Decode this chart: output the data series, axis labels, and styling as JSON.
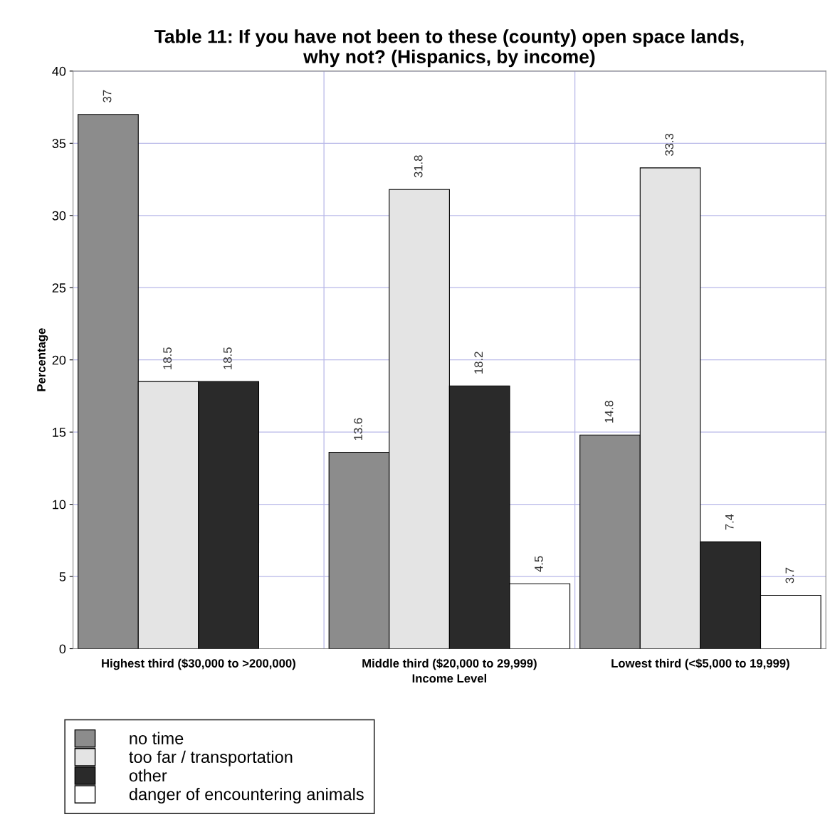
{
  "chart_data": {
    "type": "bar",
    "title": "Table 11: If you have not been to these (county) open space lands,\nwhy not? (Hispanics, by income)",
    "xlabel": "Income Level",
    "ylabel": "Percentage",
    "categories": [
      "Highest third ($30,000 to >200,000)",
      "Middle third ($20,000 to 29,999)",
      "Lowest third (<$5,000 to 19,999)"
    ],
    "series": [
      {
        "name": "no time",
        "color": "#8c8c8c",
        "values": [
          37,
          13.6,
          14.8
        ]
      },
      {
        "name": "too far / transportation",
        "color": "#e4e4e4",
        "values": [
          18.5,
          31.8,
          33.3
        ]
      },
      {
        "name": "other",
        "color": "#2a2a2a",
        "values": [
          18.5,
          18.2,
          7.4
        ]
      },
      {
        "name": "danger of encountering animals",
        "color": "#ffffff",
        "values": [
          null,
          4.5,
          3.7
        ]
      }
    ],
    "ylim": [
      0,
      40
    ],
    "yticks": [
      0,
      5,
      10,
      15,
      20,
      25,
      30,
      35,
      40
    ],
    "grid": true,
    "data_labels": true,
    "legend": "bottom"
  }
}
